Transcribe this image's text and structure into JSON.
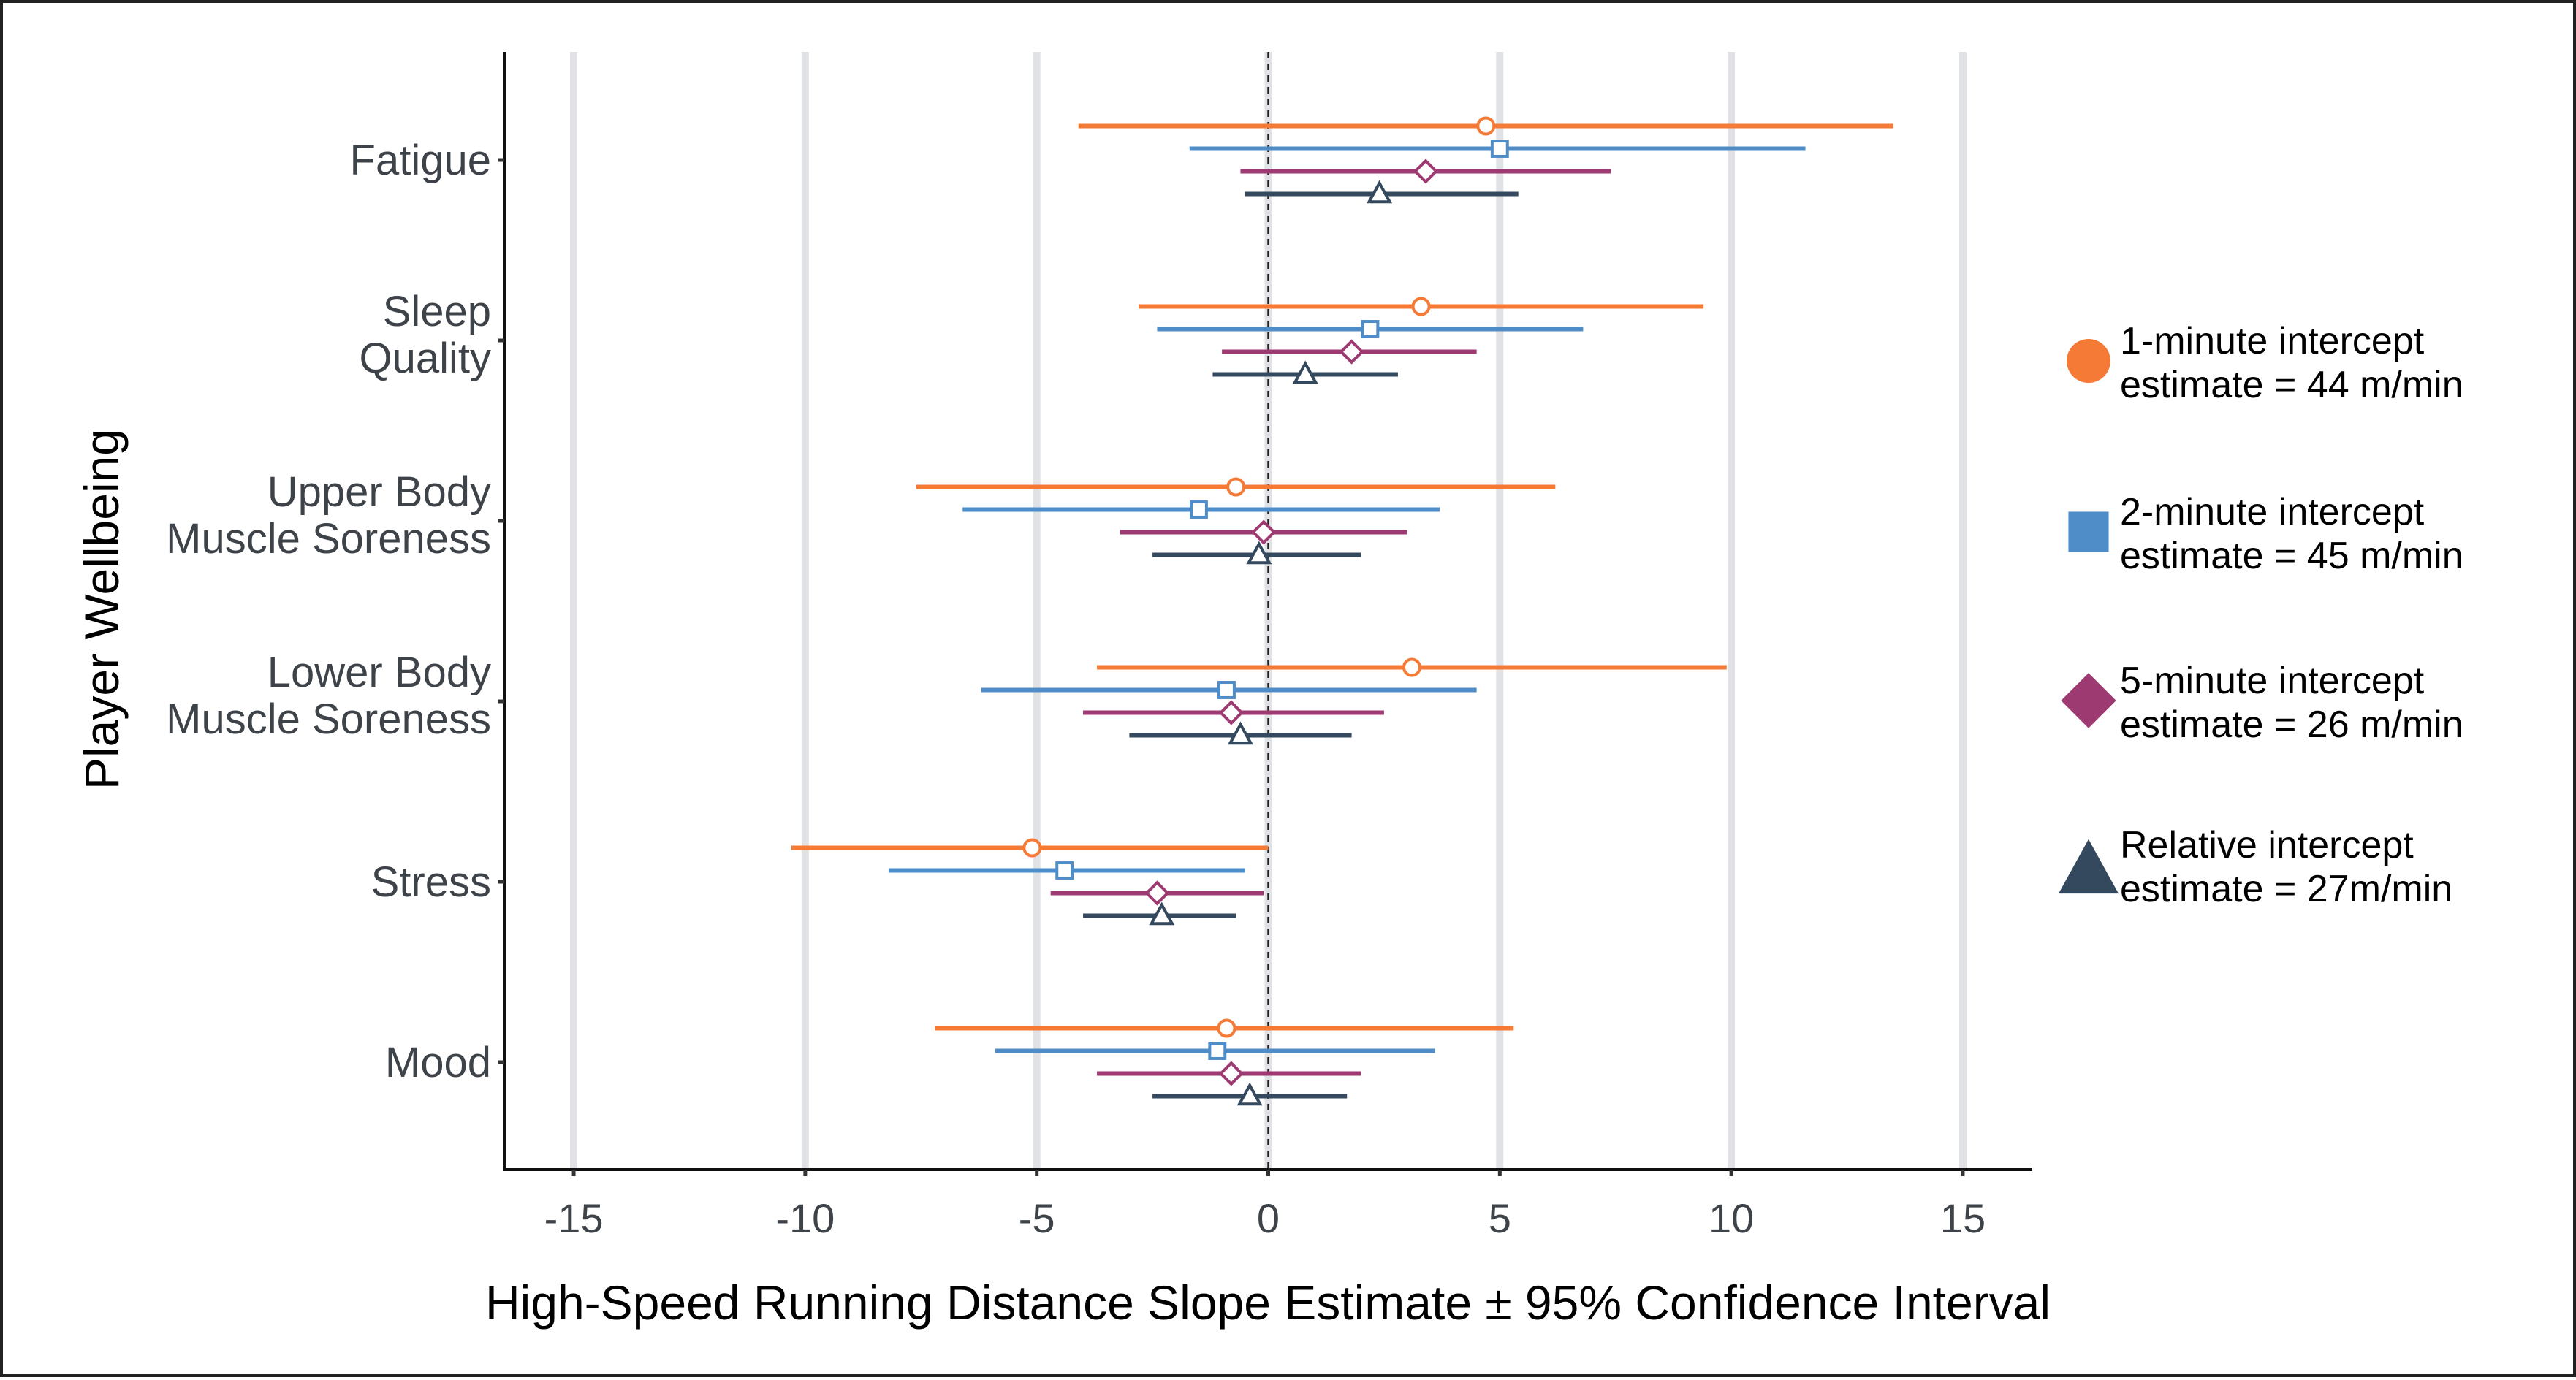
{
  "chart_data": {
    "type": "forest",
    "title": "",
    "xlabel": "High-Speed Running Distance Slope Estimate ± 95% Confidence Interval",
    "ylabel": "Player Wellbeing",
    "xlim": [
      -16.5,
      16.5
    ],
    "xticks": [
      -15,
      -10,
      -5,
      0,
      5,
      10,
      15
    ],
    "xtick_labels": [
      "-15",
      "-10",
      "-5",
      "0",
      "5",
      "10",
      "15"
    ],
    "grid": "vertical major gridlines",
    "reference_line": 0,
    "legend_position": "right",
    "categories": [
      {
        "label_lines": [
          "Fatigue"
        ]
      },
      {
        "label_lines": [
          "Sleep",
          "Quality"
        ]
      },
      {
        "label_lines": [
          "Upper Body",
          "Muscle Soreness"
        ]
      },
      {
        "label_lines": [
          "Lower Body",
          "Muscle Soreness"
        ]
      },
      {
        "label_lines": [
          "Stress"
        ]
      },
      {
        "label_lines": [
          "Mood"
        ]
      }
    ],
    "series": [
      {
        "name": "1-minute intercept",
        "legend_lines": [
          "1-minute intercept",
          "estimate = 44 m/min"
        ],
        "marker": "circle",
        "color": "#F47A35",
        "estimate": [
          4.7,
          3.3,
          -0.7,
          3.1,
          -5.1,
          -0.9
        ],
        "lower": [
          -4.1,
          -2.8,
          -7.6,
          -3.7,
          -10.3,
          -7.2
        ],
        "upper": [
          13.5,
          9.4,
          6.2,
          9.9,
          0.0,
          5.3
        ]
      },
      {
        "name": "2-minute intercept",
        "legend_lines": [
          "2-minute intercept",
          "estimate = 45 m/min"
        ],
        "marker": "square",
        "color": "#4F8DC9",
        "estimate": [
          5.0,
          2.2,
          -1.5,
          -0.9,
          -4.4,
          -1.1
        ],
        "lower": [
          -1.7,
          -2.4,
          -6.6,
          -6.2,
          -8.2,
          -5.9
        ],
        "upper": [
          11.6,
          6.8,
          3.7,
          4.5,
          -0.5,
          3.6
        ]
      },
      {
        "name": "5-minute intercept",
        "legend_lines": [
          "5-minute intercept",
          "estimate = 26 m/min"
        ],
        "marker": "diamond",
        "color": "#9E3A72",
        "estimate": [
          3.4,
          1.8,
          -0.1,
          -0.8,
          -2.4,
          -0.8
        ],
        "lower": [
          -0.6,
          -1.0,
          -3.2,
          -4.0,
          -4.7,
          -3.7
        ],
        "upper": [
          7.4,
          4.5,
          3.0,
          2.5,
          -0.1,
          2.0
        ]
      },
      {
        "name": "Relative intercept",
        "legend_lines": [
          "Relative intercept",
          "estimate = 27m/min"
        ],
        "marker": "triangle",
        "color": "#34495E",
        "estimate": [
          2.4,
          0.8,
          -0.2,
          -0.6,
          -2.3,
          -0.4
        ],
        "lower": [
          -0.5,
          -1.2,
          -2.5,
          -3.0,
          -4.0,
          -2.5
        ],
        "upper": [
          5.4,
          2.8,
          2.0,
          1.8,
          -0.7,
          1.7
        ]
      }
    ]
  }
}
